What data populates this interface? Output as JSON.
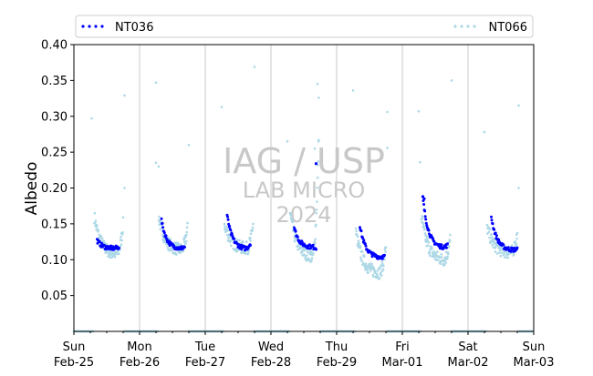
{
  "chart_data": {
    "type": "scatter",
    "title": "",
    "xlabel": "",
    "ylabel": "Albedo",
    "xlim": [
      "2024-02-25 00:00",
      "2024-03-03 00:00"
    ],
    "ylim": [
      0.0,
      0.4
    ],
    "grid": "vertical lines at each day boundary",
    "legend": {
      "placement": "top",
      "entries": [
        {
          "name": "NT036",
          "color": "#0000ff",
          "style": "dotted"
        },
        {
          "name": "NT066",
          "color": "#add8e6",
          "style": "dotted"
        }
      ]
    },
    "y_ticks": [
      "0.05",
      "0.10",
      "0.15",
      "0.20",
      "0.25",
      "0.30",
      "0.35",
      "0.40"
    ],
    "x_ticks": [
      {
        "date": "2024-02-25",
        "line1": "Sun",
        "line2": "Feb-25"
      },
      {
        "date": "2024-02-26",
        "line1": "Mon",
        "line2": "Feb-26"
      },
      {
        "date": "2024-02-27",
        "line1": "Tue",
        "line2": "Feb-27"
      },
      {
        "date": "2024-02-28",
        "line1": "Wed",
        "line2": "Feb-28"
      },
      {
        "date": "2024-02-29",
        "line1": "Thu",
        "line2": "Feb-29"
      },
      {
        "date": "2024-03-01",
        "line1": "Fri",
        "line2": "Mar-01"
      },
      {
        "date": "2024-03-02",
        "line1": "Sat",
        "line2": "Mar-02"
      },
      {
        "date": "2024-03-03",
        "line1": "Sun",
        "line2": "Mar-03"
      }
    ],
    "watermark": [
      "IAG / USP",
      "LAB MICRO",
      "2024"
    ],
    "series": [
      {
        "name": "NT036",
        "color": "#0000ff",
        "daily_curves": [
          {
            "date": "2024-02-25",
            "start_hour": 8.5,
            "end_hour": 16.5,
            "start_value": 0.127,
            "min_value": 0.116,
            "end_value": 0.118
          },
          {
            "date": "2024-02-26",
            "start_hour": 8.0,
            "end_hour": 16.5,
            "start_value": 0.155,
            "min_value": 0.116,
            "end_value": 0.118
          },
          {
            "date": "2024-02-27",
            "start_hour": 8.0,
            "end_hour": 16.5,
            "start_value": 0.162,
            "min_value": 0.116,
            "end_value": 0.123
          },
          {
            "date": "2024-02-28",
            "start_hour": 8.5,
            "end_hour": 16.5,
            "start_value": 0.145,
            "min_value": 0.118,
            "end_value": 0.116
          },
          {
            "date": "2024-02-29",
            "start_hour": 8.5,
            "end_hour": 17.5,
            "start_value": 0.148,
            "min_value": 0.104,
            "end_value": 0.104
          },
          {
            "date": "2024-03-01",
            "start_hour": 7.5,
            "end_hour": 16.5,
            "start_value": 0.187,
            "min_value": 0.118,
            "end_value": 0.12
          },
          {
            "date": "2024-03-02",
            "start_hour": 8.5,
            "end_hour": 18.0,
            "start_value": 0.16,
            "min_value": 0.114,
            "end_value": 0.114
          }
        ],
        "highlights": [
          {
            "time": "2024-02-28 16:30",
            "value": 0.234
          },
          {
            "time": "2024-03-01 07:30",
            "value": 0.188
          },
          {
            "time": "2024-03-01 08:00",
            "value": 0.185
          }
        ]
      },
      {
        "name": "NT066",
        "color": "#add8e6",
        "daily_curves": [
          {
            "date": "2024-02-25",
            "start_hour": 7.5,
            "end_hour": 18.0,
            "start_value": 0.16,
            "min_value": 0.108,
            "end_value": 0.15
          },
          {
            "date": "2024-02-26",
            "start_hour": 7.0,
            "end_hour": 17.5,
            "start_value": 0.16,
            "min_value": 0.114,
            "end_value": 0.143
          },
          {
            "date": "2024-02-27",
            "start_hour": 7.0,
            "end_hour": 17.5,
            "start_value": 0.15,
            "min_value": 0.116,
            "end_value": 0.15
          },
          {
            "date": "2024-02-28",
            "start_hour": 7.0,
            "end_hour": 17.5,
            "start_value": 0.165,
            "min_value": 0.105,
            "end_value": 0.275
          },
          {
            "date": "2024-02-29",
            "start_hour": 7.0,
            "end_hour": 18.0,
            "start_value": 0.14,
            "min_value": 0.082,
            "end_value": 0.118
          },
          {
            "date": "2024-03-01",
            "start_hour": 7.0,
            "end_hour": 17.5,
            "start_value": 0.16,
            "min_value": 0.1,
            "end_value": 0.128
          },
          {
            "date": "2024-03-02",
            "start_hour": 7.0,
            "end_hour": 18.0,
            "start_value": 0.145,
            "min_value": 0.11,
            "end_value": 0.135
          }
        ],
        "outliers": [
          {
            "time": "2024-02-25 06:30",
            "value": 0.297
          },
          {
            "time": "2024-02-25 18:30",
            "value": 0.329
          },
          {
            "time": "2024-02-25 18:30",
            "value": 0.2
          },
          {
            "time": "2024-02-26 06:00",
            "value": 0.347
          },
          {
            "time": "2024-02-26 06:00",
            "value": 0.235
          },
          {
            "time": "2024-02-26 07:00",
            "value": 0.23
          },
          {
            "time": "2024-02-26 18:00",
            "value": 0.26
          },
          {
            "time": "2024-02-27 06:00",
            "value": 0.313
          },
          {
            "time": "2024-02-27 18:00",
            "value": 0.369
          },
          {
            "time": "2024-02-28 06:00",
            "value": 0.265
          },
          {
            "time": "2024-02-28 17:00",
            "value": 0.345
          },
          {
            "time": "2024-02-28 17:30",
            "value": 0.326
          },
          {
            "time": "2024-02-28 16:00",
            "value": 0.255
          },
          {
            "time": "2024-02-29 06:00",
            "value": 0.336
          },
          {
            "time": "2024-02-29 18:30",
            "value": 0.306
          },
          {
            "time": "2024-02-29 18:30",
            "value": 0.256
          },
          {
            "time": "2024-03-01 06:00",
            "value": 0.307
          },
          {
            "time": "2024-03-01 06:30",
            "value": 0.236
          },
          {
            "time": "2024-03-01 18:00",
            "value": 0.35
          },
          {
            "time": "2024-03-02 06:00",
            "value": 0.278
          },
          {
            "time": "2024-03-02 18:30",
            "value": 0.315
          },
          {
            "time": "2024-03-02 18:30",
            "value": 0.2
          }
        ],
        "night_value": 0.0
      }
    ]
  }
}
